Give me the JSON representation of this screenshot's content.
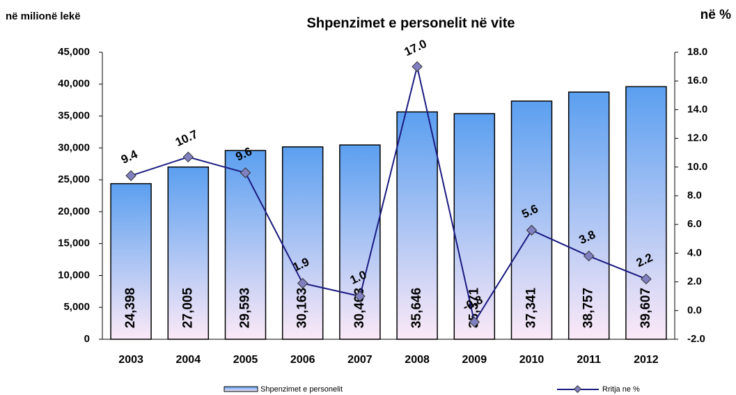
{
  "chart_data": {
    "type": "bar",
    "title": "Shpenzimet e personelit në vite",
    "y_axis_label": "në milionë lekë",
    "y2_axis_label": "në %",
    "categories": [
      "2003",
      "2004",
      "2005",
      "2006",
      "2007",
      "2008",
      "2009",
      "2010",
      "2011",
      "2012"
    ],
    "series": [
      {
        "name": "Shpenzimet e personelit",
        "type": "bar",
        "color": "#5b9ff0",
        "values": [
          24398,
          27005,
          29593,
          30163,
          30463,
          35646,
          35371,
          37341,
          38757,
          39607
        ],
        "value_labels": [
          "24,398",
          "27,005",
          "29,593",
          "30,163",
          "30,463",
          "35,646",
          "35,371",
          "37,341",
          "38,757",
          "39,607"
        ]
      },
      {
        "name": "Rritja ne %",
        "type": "line",
        "axis": "y2",
        "color": "#1a1a80",
        "values": [
          9.4,
          10.7,
          9.6,
          1.9,
          1.0,
          17.0,
          -0.8,
          5.6,
          3.8,
          2.2
        ],
        "value_labels": [
          "9.4",
          "10.7",
          "9.6",
          "1.9",
          "1.0",
          "17.0",
          "-0.8",
          "5.6",
          "3.8",
          "2.2"
        ]
      }
    ],
    "ylim": [
      0,
      45000
    ],
    "yticks": [
      0,
      {
        "value": 5000,
        "label": "5,000"
      },
      {
        "value": 10000,
        "label": "10,000"
      },
      {
        "value": 15000,
        "label": "15,000"
      },
      {
        "value": 20000,
        "label": "20,000"
      },
      {
        "value": 25000,
        "label": "25,000"
      },
      {
        "value": 30000,
        "label": "30,000"
      },
      {
        "value": 35000,
        "label": "35,000"
      },
      {
        "value": 40000,
        "label": "40,000"
      },
      {
        "value": 45000,
        "label": "45,000"
      }
    ],
    "y2lim": [
      -2,
      18
    ],
    "y2ticks": [
      {
        "value": -2,
        "label": "-2.0"
      },
      {
        "value": 0,
        "label": "0.0"
      },
      {
        "value": 2,
        "label": "2.0"
      },
      {
        "value": 4,
        "label": "4.0"
      },
      {
        "value": 6,
        "label": "6.0"
      },
      {
        "value": 8,
        "label": "8.0"
      },
      {
        "value": 10,
        "label": "10.0"
      },
      {
        "value": 12,
        "label": "12.0"
      },
      {
        "value": 14,
        "label": "14.0"
      },
      {
        "value": 16,
        "label": "16.0"
      },
      {
        "value": 18,
        "label": "18.0"
      }
    ],
    "legend": "bottom"
  }
}
